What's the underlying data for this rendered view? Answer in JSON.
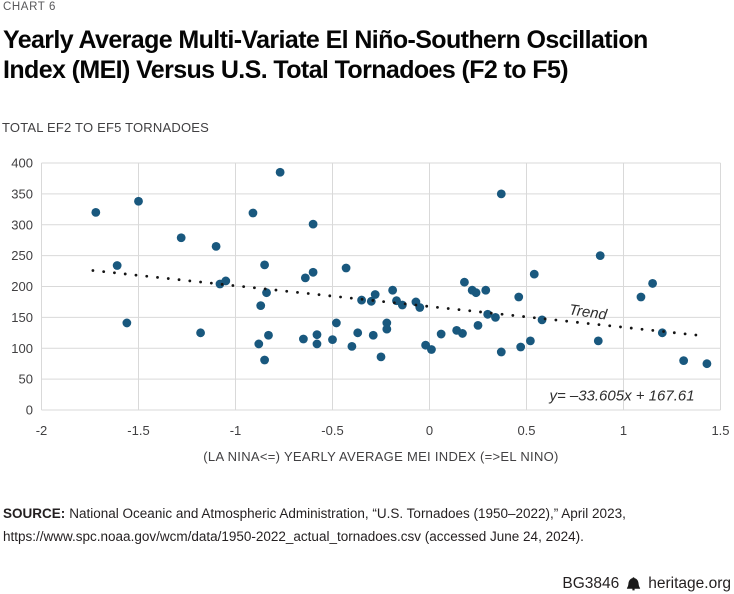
{
  "header": {
    "kicker": "CHART 6",
    "title_line1": "Yearly Average Multi-Variate El Niño-Southern Oscillation",
    "title_line2": "Index (MEI) Versus U.S. Total Tornadoes (F2 to F5)"
  },
  "chart_data": {
    "type": "scatter",
    "title": "Yearly Average Multi-Variate El Niño-Southern Oscillation Index (MEI) Versus U.S. Total Tornadoes (F2 to F5)",
    "ylabel": "TOTAL EF2 TO EF5 TORNADOES",
    "xlabel": "(LA NINA<=)  YEARLY AVERAGE MEI INDEX  (=>EL NINO)",
    "xlim": [
      -2,
      1.5
    ],
    "ylim": [
      0,
      400
    ],
    "x_ticks": [
      -2,
      -1.5,
      -1,
      -0.5,
      0,
      0.5,
      1,
      1.5
    ],
    "x_tick_labels": [
      "-2",
      "-1.5",
      "-1",
      "-0.5",
      "0",
      "0.5",
      "1",
      "1.5"
    ],
    "y_ticks": [
      0,
      50,
      100,
      150,
      200,
      250,
      300,
      350,
      400
    ],
    "grid": true,
    "legend": "none",
    "points": [
      [
        -1.72,
        320
      ],
      [
        -1.61,
        234
      ],
      [
        -1.56,
        141
      ],
      [
        -1.5,
        338
      ],
      [
        -1.28,
        279
      ],
      [
        -1.18,
        125
      ],
      [
        -1.1,
        265
      ],
      [
        -1.08,
        204
      ],
      [
        -1.05,
        209
      ],
      [
        -0.91,
        319
      ],
      [
        -0.88,
        107
      ],
      [
        -0.87,
        169
      ],
      [
        -0.85,
        235
      ],
      [
        -0.85,
        81
      ],
      [
        -0.84,
        190
      ],
      [
        -0.83,
        121
      ],
      [
        -0.77,
        385
      ],
      [
        -0.65,
        115
      ],
      [
        -0.64,
        214
      ],
      [
        -0.6,
        301
      ],
      [
        -0.6,
        223
      ],
      [
        -0.58,
        122
      ],
      [
        -0.58,
        107
      ],
      [
        -0.5,
        114
      ],
      [
        -0.48,
        141
      ],
      [
        -0.43,
        230
      ],
      [
        -0.4,
        103
      ],
      [
        -0.37,
        125
      ],
      [
        -0.35,
        178
      ],
      [
        -0.3,
        176
      ],
      [
        -0.29,
        121
      ],
      [
        -0.28,
        187
      ],
      [
        -0.25,
        86
      ],
      [
        -0.22,
        141
      ],
      [
        -0.22,
        131
      ],
      [
        -0.19,
        194
      ],
      [
        -0.17,
        177
      ],
      [
        -0.14,
        170
      ],
      [
        -0.07,
        175
      ],
      [
        -0.05,
        166
      ],
      [
        -0.02,
        105
      ],
      [
        0.01,
        98
      ],
      [
        0.06,
        123
      ],
      [
        0.14,
        129
      ],
      [
        0.17,
        124
      ],
      [
        0.18,
        207
      ],
      [
        0.22,
        194
      ],
      [
        0.24,
        190
      ],
      [
        0.25,
        137
      ],
      [
        0.29,
        194
      ],
      [
        0.3,
        155
      ],
      [
        0.34,
        150
      ],
      [
        0.37,
        350
      ],
      [
        0.37,
        94
      ],
      [
        0.46,
        183
      ],
      [
        0.47,
        102
      ],
      [
        0.52,
        112
      ],
      [
        0.54,
        220
      ],
      [
        0.58,
        146
      ],
      [
        0.87,
        112
      ],
      [
        0.88,
        250
      ],
      [
        1.09,
        183
      ],
      [
        1.15,
        205
      ],
      [
        1.2,
        125
      ],
      [
        1.31,
        80
      ],
      [
        1.43,
        75
      ]
    ],
    "trend": {
      "label": "Trend",
      "equation": "y= –33.605x + 167.61",
      "slope": -33.605,
      "intercept": 167.61,
      "x_start": -1.735,
      "x_end": 1.42,
      "dot_step": 0.0555,
      "style": "dotted"
    },
    "colors": {
      "point": "#19587E",
      "trend": "#141414",
      "grid": "#D9D9D9",
      "axis_text": "#414042",
      "annotation_text": "#2e2e2e"
    }
  },
  "footer": {
    "source_label": "SOURCE:",
    "source_text": "National Oceanic and Atmospheric Administration, “U.S. Tornadoes (1950–2022),” April 2023, https://www.spc.noaa.gov/wcm/data/1950-2022_actual_tornadoes.csv (accessed June 24, 2024).",
    "doc_id": "BG3846",
    "site": "heritage.org"
  }
}
